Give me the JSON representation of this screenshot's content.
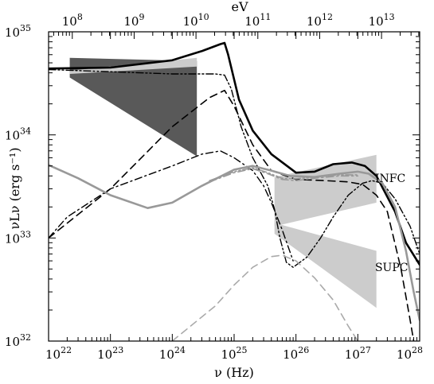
{
  "chart_data": {
    "type": "line",
    "x_scale": "log",
    "y_scale": "log",
    "xlabel": "ν (Hz)",
    "ylabel": "νLν (erg s⁻¹)",
    "top_axis_label": "eV",
    "xlim": [
      1e+22,
      1e+28
    ],
    "ylim": [
      1e+32,
      1e+35
    ],
    "x_ticks": [
      {
        "value": 1e+22,
        "base": "10",
        "exp": "22"
      },
      {
        "value": 1e+23,
        "base": "10",
        "exp": "23"
      },
      {
        "value": 1e+24,
        "base": "10",
        "exp": "24"
      },
      {
        "value": 1e+25,
        "base": "10",
        "exp": "25"
      },
      {
        "value": 1e+26,
        "base": "10",
        "exp": "26"
      },
      {
        "value": 1e+27,
        "base": "10",
        "exp": "27"
      },
      {
        "value": 1e+28,
        "base": "10",
        "exp": "28"
      }
    ],
    "y_ticks": [
      {
        "value": 1e+32,
        "base": "10",
        "exp": "32"
      },
      {
        "value": 1e+33,
        "base": "10",
        "exp": "33"
      },
      {
        "value": 1e+34,
        "base": "10",
        "exp": "34"
      },
      {
        "value": 1e+35,
        "base": "10",
        "exp": "35"
      }
    ],
    "top_ticks": [
      {
        "ev": 100000000.0,
        "base": "10",
        "exp": "8"
      },
      {
        "ev": 1000000000.0,
        "base": "10",
        "exp": "9"
      },
      {
        "ev": 10000000000.0,
        "base": "10",
        "exp": "10"
      },
      {
        "ev": 100000000000.0,
        "base": "10",
        "exp": "11"
      },
      {
        "ev": 1000000000000.0,
        "base": "10",
        "exp": "12"
      },
      {
        "ev": 10000000000000.0,
        "base": "10",
        "exp": "13"
      }
    ],
    "ev_to_hz": 241800000000000.0,
    "curve_labels": [
      {
        "text": "INFC",
        "x": 1.9e+27,
        "y": 3.8e+33
      },
      {
        "text": "SUPC",
        "x": 1.9e+27,
        "y": 5.2e+32
      }
    ],
    "butterflies": [
      {
        "name": "dark-butterfly",
        "color": "#595959",
        "polygon": [
          [
            2.2e+22,
            5.6e+34
          ],
          [
            2.5e+24,
            5.2e+34
          ],
          [
            2.5e+24,
            6.2e+33
          ],
          [
            2.2e+22,
            3.6e+34
          ]
        ]
      },
      {
        "name": "light-butterfly-upper-band",
        "color": "#cccccc",
        "polygon": [
          [
            2.2e+22,
            4.2e+34
          ],
          [
            2.5e+24,
            5.6e+34
          ],
          [
            2.5e+24,
            4.6e+34
          ],
          [
            2.2e+22,
            3.9e+34
          ]
        ]
      },
      {
        "name": "light-butterfly-infc",
        "color": "#cccccc",
        "polygon": [
          [
            4.5e+25,
            3.9e+33
          ],
          [
            2e+27,
            6.4e+33
          ],
          [
            2e+27,
            2.2e+33
          ],
          [
            4.5e+25,
            1.3e+33
          ]
        ]
      },
      {
        "name": "light-butterfly-supc",
        "color": "#cccccc",
        "polygon": [
          [
            4.5e+25,
            1.4e+33
          ],
          [
            2e+27,
            7.5e+32
          ],
          [
            2e+27,
            2.1e+32
          ],
          [
            4.5e+25,
            1.1e+33
          ]
        ]
      }
    ],
    "series": [
      {
        "color": "#000000",
        "dash": "solid",
        "width": 2.6,
        "points": [
          [
            1e+22,
            4.4e+34
          ],
          [
            1e+23,
            4.5e+34
          ],
          [
            1e+24,
            5.3e+34
          ],
          [
            3e+24,
            6.5e+34
          ],
          [
            6e+24,
            7.6e+34
          ],
          [
            7e+24,
            7.8e+34
          ],
          [
            8e+24,
            6e+34
          ],
          [
            1.2e+25,
            2.2e+34
          ],
          [
            2e+25,
            1.1e+34
          ],
          [
            4e+25,
            6.5e+33
          ],
          [
            1e+26,
            4.3e+33
          ],
          [
            2e+26,
            4.4e+33
          ],
          [
            4e+26,
            5.2e+33
          ],
          [
            8e+26,
            5.4e+33
          ],
          [
            1.3e+27,
            5e+33
          ],
          [
            2e+27,
            4e+33
          ],
          [
            4e+27,
            1.8e+33
          ],
          [
            6e+27,
            9e+32
          ],
          [
            1e+28,
            5.5e+32
          ]
        ]
      },
      {
        "color": "#000000",
        "dash": "dashdotdot",
        "width": 1.4,
        "points": [
          [
            1e+22,
            4.3e+34
          ],
          [
            1e+23,
            4.1e+34
          ],
          [
            1e+24,
            3.9e+34
          ],
          [
            5e+24,
            3.9e+34
          ],
          [
            7e+24,
            3.8e+34
          ],
          [
            9e+24,
            2.8e+34
          ],
          [
            1.3e+25,
            1.2e+34
          ],
          [
            2e+25,
            6e+33
          ],
          [
            3.5e+25,
            3.2e+33
          ],
          [
            4.5e+25,
            1.9e+33
          ],
          [
            5.5e+25,
            1e+33
          ],
          [
            7e+25,
            5.8e+32
          ],
          [
            9e+25,
            5.2e+32
          ],
          [
            1.5e+26,
            6.5e+32
          ],
          [
            2.5e+26,
            1e+33
          ],
          [
            4e+26,
            1.6e+33
          ],
          [
            7e+26,
            2.6e+33
          ],
          [
            1.2e+27,
            3.4e+33
          ],
          [
            1.7e+27,
            3.6e+33
          ],
          [
            2.5e+27,
            3.4e+33
          ],
          [
            4e+27,
            2.4e+33
          ],
          [
            7e+27,
            1.3e+33
          ],
          [
            1e+28,
            7e+32
          ]
        ]
      },
      {
        "color": "#000000",
        "dash": "dashdot",
        "width": 1.4,
        "points": [
          [
            1e+22,
            1e+33
          ],
          [
            2e+22,
            1.6e+33
          ],
          [
            1e+23,
            3e+33
          ],
          [
            1e+24,
            5e+33
          ],
          [
            3e+24,
            6.5e+33
          ],
          [
            6e+24,
            7e+33
          ],
          [
            1e+25,
            6e+33
          ],
          [
            2e+25,
            4.5e+33
          ],
          [
            3e+25,
            3.2e+33
          ],
          [
            4e+25,
            2.2e+33
          ],
          [
            6e+25,
            1.2e+33
          ],
          [
            9e+25,
            6e+32
          ]
        ]
      },
      {
        "color": "#000000",
        "dash": "dashed",
        "width": 1.6,
        "points": [
          [
            1e+22,
            1e+33
          ],
          [
            1e+23,
            3e+33
          ],
          [
            1e+24,
            1.2e+34
          ],
          [
            4e+24,
            2.3e+34
          ],
          [
            7e+24,
            2.7e+34
          ],
          [
            1e+25,
            1.9e+34
          ],
          [
            2e+25,
            8e+33
          ],
          [
            4e+25,
            4.5e+33
          ],
          [
            1e+26,
            3.7e+33
          ],
          [
            3e+26,
            3.6e+33
          ],
          [
            7e+26,
            3.5e+33
          ],
          [
            1.2e+27,
            3.3e+33
          ],
          [
            2e+27,
            2.6e+33
          ],
          [
            3e+27,
            1.8e+33
          ],
          [
            5e+27,
            5e+32
          ],
          [
            7e+27,
            1.6e+32
          ],
          [
            8e+27,
            1e+32
          ]
        ]
      },
      {
        "color": "#999999",
        "dash": "solid",
        "width": 2.6,
        "points": [
          [
            1e+22,
            5.1e+33
          ],
          [
            3e+22,
            3.8e+33
          ],
          [
            1e+23,
            2.6e+33
          ],
          [
            4e+23,
            1.95e+33
          ],
          [
            1e+24,
            2.2e+33
          ],
          [
            3e+24,
            3.2e+33
          ],
          [
            1e+25,
            4.6e+33
          ],
          [
            2e+25,
            5e+33
          ],
          [
            4e+25,
            4.5e+33
          ],
          [
            8e+25,
            4e+33
          ],
          [
            2e+26,
            3.9e+33
          ],
          [
            5e+26,
            4.2e+33
          ],
          [
            1e+27,
            4.4e+33
          ],
          [
            1.5e+27,
            4.2e+33
          ],
          [
            2.5e+27,
            3.4e+33
          ],
          [
            4e+27,
            2e+33
          ],
          [
            6e+27,
            7.5e+32
          ],
          [
            8e+27,
            3e+32
          ],
          [
            1e+28,
            1.6e+32
          ]
        ]
      },
      {
        "color": "#999999",
        "dash": "dashdotdot",
        "width": 1.6,
        "points": [
          [
            4e+24,
            3.6e+33
          ],
          [
            1e+25,
            4.4e+33
          ],
          [
            2e+25,
            4.8e+33
          ],
          [
            3.5e+25,
            4.3e+33
          ],
          [
            6e+25,
            3.8e+33
          ],
          [
            1e+26,
            3.75e+33
          ],
          [
            2e+26,
            3.9e+33
          ],
          [
            5e+26,
            4.1e+33
          ],
          [
            1e+27,
            4.1e+33
          ]
        ]
      },
      {
        "color": "#999999",
        "dash": "dashdot",
        "width": 1.6,
        "points": [
          [
            4e+24,
            3.5e+33
          ],
          [
            1e+25,
            4.3e+33
          ],
          [
            2e+25,
            4.7e+33
          ],
          [
            3.5e+25,
            4.2e+33
          ],
          [
            6e+25,
            3.7e+33
          ],
          [
            1e+26,
            3.6e+33
          ],
          [
            2e+26,
            3.8e+33
          ],
          [
            5e+26,
            4e+33
          ],
          [
            1e+27,
            4e+33
          ]
        ]
      },
      {
        "color": "#aaaaaa",
        "dash": "dashed",
        "width": 1.6,
        "points": [
          [
            1e+24,
            1e+32
          ],
          [
            5e+24,
            2.2e+32
          ],
          [
            1e+25,
            3.5e+32
          ],
          [
            2e+25,
            5.2e+32
          ],
          [
            4e+25,
            6.6e+32
          ],
          [
            6e+25,
            6.8e+32
          ],
          [
            1e+26,
            6e+32
          ],
          [
            2e+26,
            4.1e+32
          ],
          [
            4e+26,
            2.5e+32
          ],
          [
            7e+26,
            1.4e+32
          ],
          [
            1e+27,
            1e+32
          ]
        ]
      }
    ]
  }
}
